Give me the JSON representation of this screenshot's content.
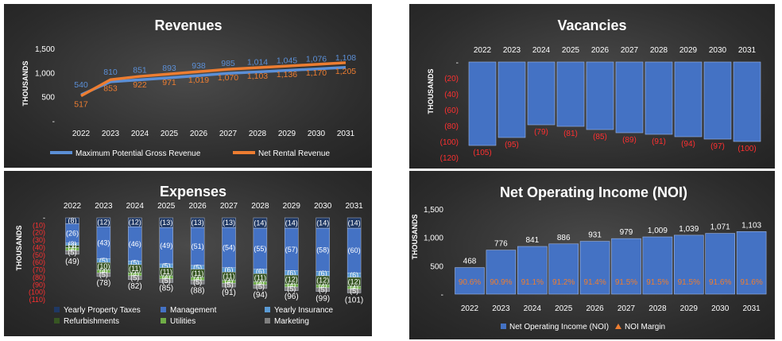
{
  "chart_data": [
    {
      "type": "line",
      "title": "Revenues",
      "ylabel": "THOUSANDS",
      "xlabel": "",
      "x": [
        "2022",
        "2023",
        "2024",
        "2025",
        "2026",
        "2027",
        "2028",
        "2029",
        "2030",
        "2031"
      ],
      "y_ticks": [
        "-",
        "500",
        "1,000",
        "1,500"
      ],
      "ylim": [
        0,
        1500
      ],
      "legend_position": "bottom",
      "series": [
        {
          "name": "Maximum Potential Gross Revenue",
          "color": "#5b8fd6",
          "values": [
            540,
            810,
            851,
            893,
            938,
            985,
            1014,
            1045,
            1076,
            1108
          ],
          "labels": [
            "540",
            "810",
            "851",
            "893",
            "938",
            "985",
            "1,014",
            "1,045",
            "1,076",
            "1,108"
          ]
        },
        {
          "name": "Net Rental Revenue",
          "color": "#ed7d31",
          "values": [
            517,
            853,
            922,
            971,
            1019,
            1070,
            1103,
            1136,
            1170,
            1205
          ],
          "labels": [
            "517",
            "853",
            "922",
            "971",
            "1,019",
            "1,070",
            "1,103",
            "1,136",
            "1,170",
            "1,205"
          ]
        }
      ]
    },
    {
      "type": "bar",
      "title": "Vacancies",
      "ylabel": "THOUSANDS",
      "categories": [
        "2022",
        "2023",
        "2024",
        "2025",
        "2026",
        "2027",
        "2028",
        "2029",
        "2030",
        "2031"
      ],
      "y_ticks": [
        "-",
        "(20)",
        "(40)",
        "(60)",
        "(80)",
        "(100)",
        "(120)"
      ],
      "ylim": [
        -120,
        0
      ],
      "values": [
        -105,
        -95,
        -79,
        -81,
        -85,
        -89,
        -91,
        -94,
        -97,
        -100
      ],
      "labels": [
        "(105)",
        "(95)",
        "(79)",
        "(81)",
        "(85)",
        "(89)",
        "(91)",
        "(94)",
        "(97)",
        "(100)"
      ],
      "bar_color": "#4472c4",
      "label_color": "#ff3030"
    },
    {
      "type": "bar",
      "stacked": true,
      "title": "Expenses",
      "ylabel": "THOUSANDS",
      "categories": [
        "2022",
        "2023",
        "2024",
        "2025",
        "2026",
        "2027",
        "2028",
        "2029",
        "2030",
        "2031"
      ],
      "y_ticks": [
        "-",
        "(10)",
        "(20)",
        "(30)",
        "(40)",
        "(50)",
        "(60)",
        "(70)",
        "(80)",
        "(90)",
        "(100)",
        "(110)"
      ],
      "ylim": [
        -110,
        0
      ],
      "legend_position": "bottom",
      "series": [
        {
          "name": "Yearly Property Taxes",
          "color": "#1f3864",
          "values": [
            -8,
            -12,
            -12,
            -13,
            -13,
            -13,
            -14,
            -14,
            -14,
            -14
          ],
          "labels": [
            "(8)",
            "(12)",
            "(12)",
            "(13)",
            "(13)",
            "(13)",
            "(14)",
            "(14)",
            "(14)",
            "(14)"
          ]
        },
        {
          "name": "Management",
          "color": "#4472c4",
          "values": [
            -26,
            -43,
            -46,
            -49,
            -51,
            -54,
            -55,
            -57,
            -58,
            -60
          ],
          "labels": [
            "(26)",
            "(43)",
            "(46)",
            "(49)",
            "(51)",
            "(54)",
            "(55)",
            "(57)",
            "(58)",
            "(60)"
          ]
        },
        {
          "name": "Yearly Insurance",
          "color": "#5b9bd5",
          "values": [
            -3,
            -5,
            -5,
            -5,
            -5,
            -6,
            -6,
            -6,
            -6,
            -6
          ],
          "labels": [
            "(3)",
            "(5)",
            "(5)",
            "(5)",
            "(5)",
            "(6)",
            "(6)",
            "(6)",
            "(6)",
            "(6)"
          ]
        },
        {
          "name": "Refurbishments",
          "color": "#375623",
          "values": [
            -3,
            -10,
            -11,
            -11,
            -11,
            -11,
            -11,
            -12,
            -12,
            -12
          ],
          "labels": [
            "(3)",
            "(10)",
            "(11)",
            "(11)",
            "(11)",
            "(11)",
            "(11)",
            "(12)",
            "(12)",
            "(12)"
          ]
        },
        {
          "name": "Utilities",
          "color": "#70ad47",
          "values": [
            -4,
            -4,
            -4,
            -4,
            -4,
            -4,
            -4,
            -4,
            -4,
            -4
          ],
          "labels": [
            "(4)",
            "(4)",
            "(4)",
            "(4)",
            "(4)",
            "(4)",
            "(4)",
            "(4)",
            "(4)",
            "(4)"
          ]
        },
        {
          "name": "Marketing",
          "color": "#7f7f7f",
          "values": [
            -5,
            -5,
            -5,
            -5,
            -5,
            -5,
            -5,
            -5,
            -5,
            -5
          ],
          "labels": [
            "(5)",
            "(5)",
            "(5)",
            "(5)",
            "(5)",
            "(5)",
            "(5)",
            "(5)",
            "(5)",
            "(5)"
          ]
        }
      ],
      "totals": [
        -49,
        -78,
        -82,
        -85,
        -88,
        -91,
        -94,
        -96,
        -99,
        -101
      ],
      "total_labels": [
        "(49)",
        "(78)",
        "(82)",
        "(85)",
        "(88)",
        "(91)",
        "(94)",
        "(96)",
        "(99)",
        "(101)"
      ],
      "tick_label_color": "#ff3030"
    },
    {
      "type": "bar",
      "title": "Net Operating Income (NOI)",
      "ylabel": "THOUSANDS",
      "categories": [
        "2022",
        "2023",
        "2024",
        "2025",
        "2026",
        "2027",
        "2028",
        "2029",
        "2030",
        "2031"
      ],
      "y_ticks": [
        "-",
        "500",
        "1,000",
        "1,500"
      ],
      "ylim": [
        0,
        1500
      ],
      "legend_position": "bottom",
      "series": [
        {
          "name": "Net Operating Income (NOI)",
          "color": "#4472c4",
          "values": [
            468,
            776,
            841,
            886,
            931,
            979,
            1009,
            1039,
            1071,
            1103
          ],
          "labels": [
            "468",
            "776",
            "841",
            "886",
            "931",
            "979",
            "1,009",
            "1,039",
            "1,071",
            "1,103"
          ]
        },
        {
          "name": "NOI Margin",
          "color": "#ed7d31",
          "values": [
            90.6,
            90.9,
            91.1,
            91.2,
            91.4,
            91.5,
            91.5,
            91.5,
            91.6,
            91.6
          ],
          "labels": [
            "90.6%",
            "90.9%",
            "91.1%",
            "91.2%",
            "91.4%",
            "91.5%",
            "91.5%",
            "91.5%",
            "91.6%",
            "91.6%"
          ]
        }
      ]
    }
  ]
}
